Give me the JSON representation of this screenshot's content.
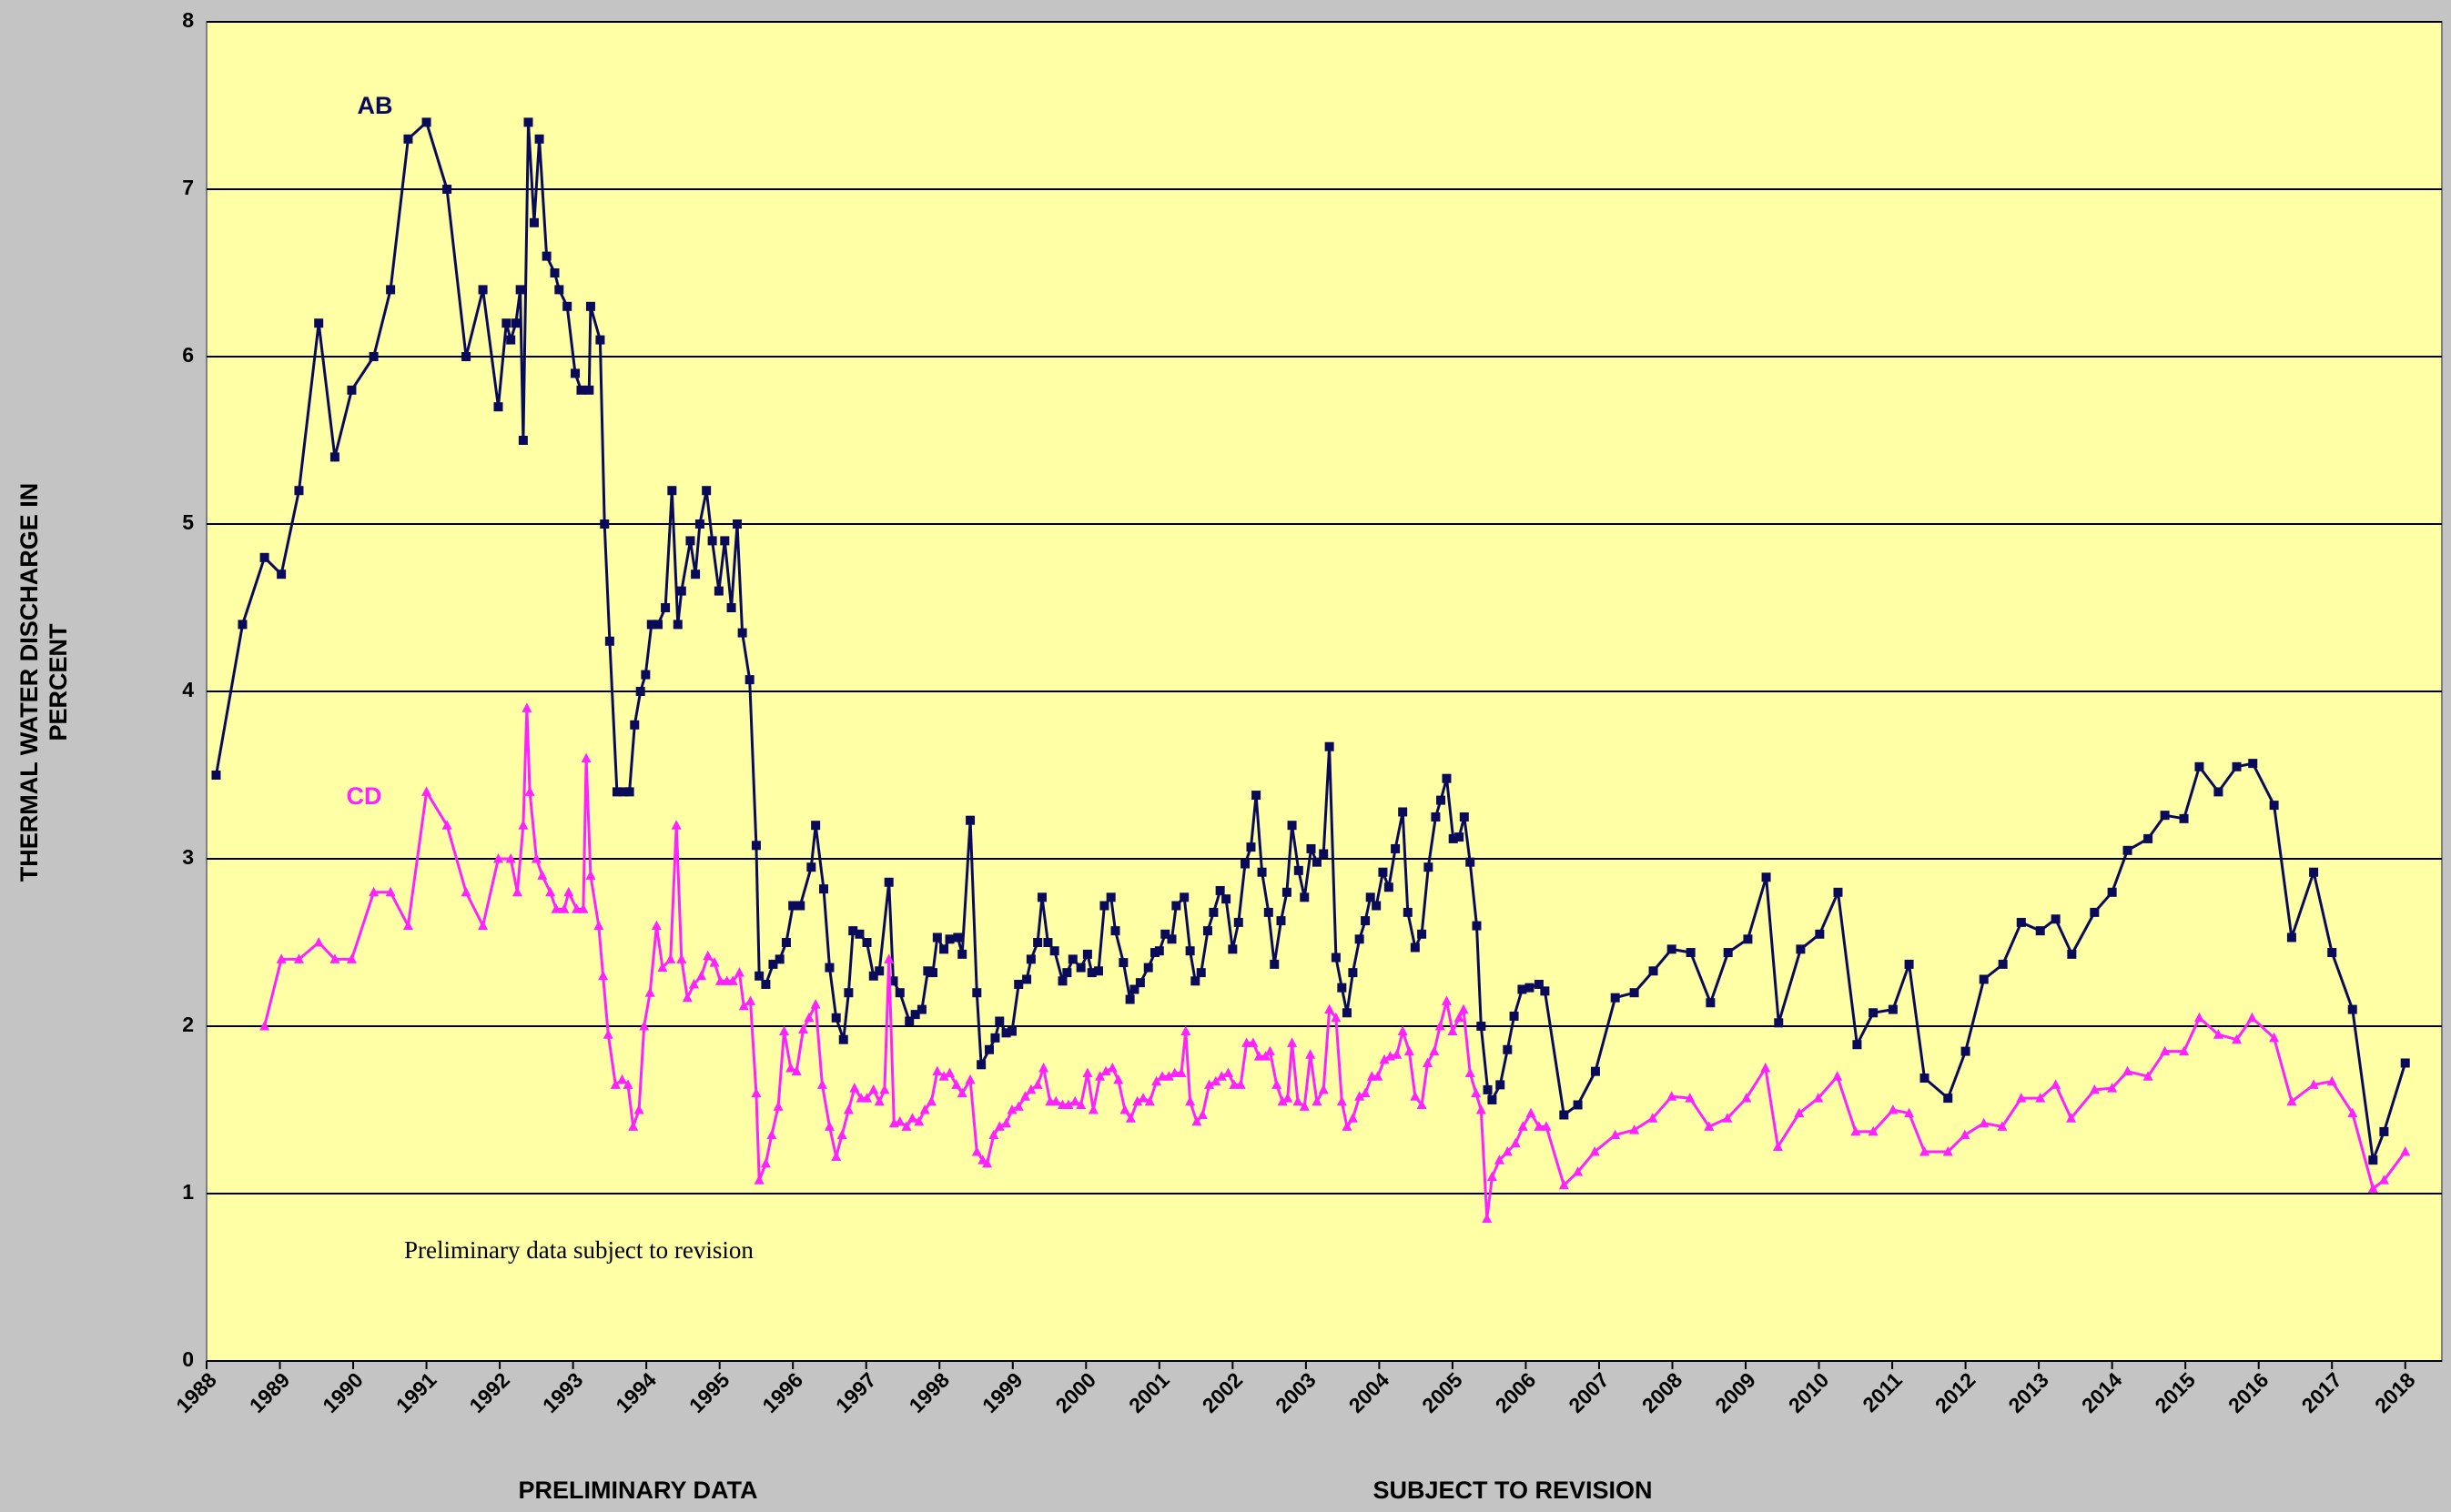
{
  "chart_data": {
    "type": "line",
    "y_label": [
      "THERMAL WATER DISCHARGE IN",
      "PERCENT"
    ],
    "annotations": [
      "Preliminary data subject to revision",
      "PRELIMINARY DATA",
      "SUBJECT TO REVISION"
    ],
    "xlim": [
      1988,
      2018.5
    ],
    "ylim": [
      0,
      8
    ],
    "xticks": [
      1988,
      1989,
      1990,
      1991,
      1992,
      1993,
      1994,
      1995,
      1996,
      1997,
      1998,
      1999,
      2000,
      2001,
      2002,
      2003,
      2004,
      2005,
      2006,
      2007,
      2008,
      2009,
      2010,
      2011,
      2012,
      2013,
      2014,
      2015,
      2016,
      2017,
      2018
    ],
    "yticks": [
      0,
      1,
      2,
      3,
      4,
      5,
      6,
      7,
      8
    ],
    "grid": true,
    "series": [
      {
        "name": "AB",
        "color": "#0a0a5a",
        "marker": "square",
        "x": [
          1988.13,
          1988.49,
          1988.79,
          1989.02,
          1989.26,
          1989.53,
          1989.75,
          1989.98,
          1990.28,
          1990.51,
          1990.75,
          1991.0,
          1991.28,
          1991.54,
          1991.77,
          1991.98,
          1992.09,
          1992.15,
          1992.22,
          1992.28,
          1992.32,
          1992.39,
          1992.47,
          1992.54,
          1992.64,
          1992.75,
          1992.81,
          1992.92,
          1993.03,
          1993.11,
          1993.22,
          1993.24,
          1993.37,
          1993.43,
          1993.5,
          1993.6,
          1993.69,
          1993.77,
          1993.84,
          1993.92,
          1993.99,
          1994.07,
          1994.16,
          1994.26,
          1994.35,
          1994.43,
          1994.48,
          1994.6,
          1994.67,
          1994.73,
          1994.82,
          1994.9,
          1994.99,
          1995.07,
          1995.16,
          1995.24,
          1995.31,
          1995.41,
          1995.5,
          1995.54,
          1995.63,
          1995.73,
          1995.82,
          1995.91,
          1996.0,
          1996.1,
          1996.25,
          1996.31,
          1996.42,
          1996.5,
          1996.59,
          1996.69,
          1996.76,
          1996.82,
          1996.91,
          1997.01,
          1997.1,
          1997.18,
          1997.31,
          1997.37,
          1997.46,
          1997.59,
          1997.67,
          1997.76,
          1997.84,
          1997.91,
          1997.97,
          1998.06,
          1998.14,
          1998.25,
          1998.31,
          1998.42,
          1998.51,
          1998.57,
          1998.68,
          1998.76,
          1998.82,
          1998.91,
          1998.99,
          1999.08,
          1999.19,
          1999.25,
          1999.34,
          1999.4,
          1999.48,
          1999.57,
          1999.68,
          1999.74,
          1999.82,
          1999.93,
          2000.02,
          2000.08,
          2000.17,
          2000.25,
          2000.34,
          2000.4,
          2000.51,
          2000.6,
          2000.66,
          2000.74,
          2000.85,
          2000.94,
          2001.0,
          2001.08,
          2001.17,
          2001.23,
          2001.34,
          2001.42,
          2001.49,
          2001.57,
          2001.66,
          2001.74,
          2001.83,
          2001.91,
          2002.0,
          2002.08,
          2002.17,
          2002.25,
          2002.32,
          2002.4,
          2002.49,
          2002.57,
          2002.66,
          2002.74,
          2002.81,
          2002.9,
          2002.98,
          2003.07,
          2003.15,
          2003.24,
          2003.32,
          2003.41,
          2003.49,
          2003.56,
          2003.64,
          2003.73,
          2003.81,
          2003.88,
          2003.96,
          2004.05,
          2004.13,
          2004.22,
          2004.32,
          2004.39,
          2004.49,
          2004.58,
          2004.67,
          2004.77,
          2004.84,
          2004.92,
          2005.01,
          2005.09,
          2005.16,
          2005.24,
          2005.33,
          2005.39,
          2005.48,
          2005.54,
          2005.65,
          2005.75,
          2005.84,
          2005.95,
          2006.05,
          2006.18,
          2006.26,
          2006.52,
          2006.71,
          2006.95,
          2007.22,
          2007.48,
          2007.74,
          2007.99,
          2008.25,
          2008.52,
          2008.76,
          2009.03,
          2009.28,
          2009.45,
          2009.75,
          2010.01,
          2010.26,
          2010.52,
          2010.74,
          2011.01,
          2011.23,
          2011.44,
          2011.76,
          2012.0,
          2012.25,
          2012.51,
          2012.76,
          2013.02,
          2013.23,
          2013.45,
          2013.76,
          2014.0,
          2014.21,
          2014.49,
          2014.72,
          2014.98,
          2015.19,
          2015.45,
          2015.7,
          2015.92,
          2016.21,
          2016.45,
          2016.75,
          2017.0,
          2017.28,
          2017.56,
          2017.71,
          2018.0
        ],
        "values": [
          3.5,
          4.4,
          4.8,
          4.7,
          5.2,
          6.2,
          5.4,
          5.8,
          6.0,
          6.4,
          7.3,
          7.4,
          7.0,
          6.0,
          6.4,
          5.7,
          6.2,
          6.1,
          6.2,
          6.4,
          5.5,
          7.4,
          6.8,
          7.3,
          6.6,
          6.5,
          6.4,
          6.3,
          5.9,
          5.8,
          5.8,
          6.3,
          6.1,
          5.0,
          4.3,
          3.4,
          3.4,
          3.4,
          3.8,
          4.0,
          4.1,
          4.4,
          4.4,
          4.5,
          5.2,
          4.4,
          4.6,
          4.9,
          4.7,
          5.0,
          5.2,
          4.9,
          4.6,
          4.9,
          4.5,
          5.0,
          4.35,
          4.07,
          3.08,
          2.3,
          2.25,
          2.37,
          2.4,
          2.5,
          2.72,
          2.72,
          2.95,
          3.2,
          2.82,
          2.35,
          2.05,
          1.92,
          2.2,
          2.57,
          2.55,
          2.5,
          2.3,
          2.33,
          2.86,
          2.27,
          2.2,
          2.03,
          2.07,
          2.1,
          2.33,
          2.32,
          2.53,
          2.46,
          2.52,
          2.53,
          2.43,
          3.23,
          2.2,
          1.77,
          1.86,
          1.93,
          2.03,
          1.96,
          1.97,
          2.25,
          2.28,
          2.4,
          2.5,
          2.77,
          2.5,
          2.45,
          2.27,
          2.32,
          2.4,
          2.35,
          2.43,
          2.32,
          2.33,
          2.72,
          2.77,
          2.57,
          2.38,
          2.16,
          2.22,
          2.26,
          2.35,
          2.44,
          2.45,
          2.55,
          2.52,
          2.72,
          2.77,
          2.45,
          2.27,
          2.32,
          2.57,
          2.68,
          2.81,
          2.76,
          2.46,
          2.62,
          2.97,
          3.07,
          3.38,
          2.92,
          2.68,
          2.37,
          2.63,
          2.8,
          3.2,
          2.93,
          2.77,
          3.06,
          2.98,
          3.03,
          3.67,
          2.41,
          2.23,
          2.08,
          2.32,
          2.52,
          2.63,
          2.77,
          2.72,
          2.92,
          2.83,
          3.06,
          3.28,
          2.68,
          2.47,
          2.55,
          2.95,
          3.25,
          3.35,
          3.48,
          3.12,
          3.13,
          3.25,
          2.98,
          2.6,
          2.0,
          1.62,
          1.56,
          1.65,
          1.86,
          2.06,
          2.22,
          2.23,
          2.25,
          2.21,
          1.47,
          1.53,
          1.73,
          2.17,
          2.2,
          2.33,
          2.46,
          2.44,
          2.14,
          2.44,
          2.52,
          2.89,
          2.02,
          2.46,
          2.55,
          2.8,
          1.89,
          2.08,
          2.1,
          2.37,
          1.69,
          1.57,
          1.85,
          2.28,
          2.37,
          2.62,
          2.57,
          2.64,
          2.43,
          2.68,
          2.8,
          3.05,
          3.12,
          3.26,
          3.24,
          3.55,
          3.4,
          3.55,
          3.57,
          3.32,
          2.53,
          2.92,
          2.44,
          2.1,
          1.2,
          1.37,
          1.78
        ]
      },
      {
        "name": "CD",
        "color": "#ff22ff",
        "marker": "triangle",
        "x": [
          1988.79,
          1989.02,
          1989.26,
          1989.53,
          1989.75,
          1989.98,
          1990.28,
          1990.51,
          1990.75,
          1991.0,
          1991.28,
          1991.54,
          1991.77,
          1991.98,
          1992.15,
          1992.24,
          1992.32,
          1992.37,
          1992.41,
          1992.5,
          1992.58,
          1992.69,
          1992.77,
          1992.88,
          1992.94,
          1993.05,
          1993.14,
          1993.18,
          1993.24,
          1993.35,
          1993.41,
          1993.48,
          1993.58,
          1993.67,
          1993.75,
          1993.82,
          1993.9,
          1993.97,
          1994.05,
          1994.14,
          1994.22,
          1994.33,
          1994.41,
          1994.48,
          1994.56,
          1994.65,
          1994.75,
          1994.84,
          1994.93,
          1995.01,
          1995.1,
          1995.18,
          1995.27,
          1995.33,
          1995.42,
          1995.5,
          1995.54,
          1995.63,
          1995.71,
          1995.8,
          1995.88,
          1995.97,
          1996.05,
          1996.14,
          1996.22,
          1996.31,
          1996.4,
          1996.5,
          1996.59,
          1996.67,
          1996.76,
          1996.84,
          1996.93,
          1997.01,
          1997.1,
          1997.18,
          1997.25,
          1997.31,
          1997.38,
          1997.46,
          1997.55,
          1997.63,
          1997.72,
          1997.8,
          1997.89,
          1997.97,
          1998.06,
          1998.14,
          1998.23,
          1998.31,
          1998.42,
          1998.51,
          1998.59,
          1998.65,
          1998.74,
          1998.82,
          1998.91,
          1998.99,
          1999.08,
          1999.17,
          1999.25,
          1999.34,
          1999.42,
          1999.51,
          1999.59,
          1999.68,
          1999.76,
          1999.85,
          1999.93,
          2000.02,
          2000.1,
          2000.19,
          2000.27,
          2000.36,
          2000.44,
          2000.53,
          2000.61,
          2000.7,
          2000.78,
          2000.87,
          2000.96,
          2001.04,
          2001.13,
          2001.21,
          2001.3,
          2001.36,
          2001.42,
          2001.51,
          2001.59,
          2001.68,
          2001.77,
          2001.85,
          2001.94,
          2002.02,
          2002.11,
          2002.19,
          2002.28,
          2002.36,
          2002.45,
          2002.51,
          2002.6,
          2002.68,
          2002.75,
          2002.81,
          2002.89,
          2002.98,
          2003.06,
          2003.15,
          2003.24,
          2003.32,
          2003.41,
          2003.49,
          2003.56,
          2003.64,
          2003.73,
          2003.81,
          2003.9,
          2003.98,
          2004.07,
          2004.15,
          2004.24,
          2004.32,
          2004.41,
          2004.49,
          2004.58,
          2004.66,
          2004.75,
          2004.83,
          2004.92,
          2005.0,
          2005.09,
          2005.15,
          2005.24,
          2005.32,
          2005.39,
          2005.47,
          2005.54,
          2005.64,
          2005.75,
          2005.86,
          2005.96,
          2006.07,
          2006.18,
          2006.28,
          2006.52,
          2006.71,
          2006.94,
          2007.22,
          2007.48,
          2007.73,
          2007.99,
          2008.24,
          2008.5,
          2008.75,
          2009.01,
          2009.27,
          2009.44,
          2009.73,
          2009.99,
          2010.25,
          2010.5,
          2010.74,
          2011.01,
          2011.23,
          2011.44,
          2011.76,
          2011.99,
          2012.25,
          2012.5,
          2012.76,
          2013.02,
          2013.23,
          2013.44,
          2013.76,
          2014.0,
          2014.21,
          2014.49,
          2014.72,
          2014.98,
          2015.19,
          2015.45,
          2015.7,
          2015.91,
          2016.21,
          2016.45,
          2016.75,
          2017.0,
          2017.28,
          2017.56,
          2017.71,
          2018.0
        ],
        "values": [
          2.0,
          2.4,
          2.4,
          2.5,
          2.4,
          2.4,
          2.8,
          2.8,
          2.6,
          3.4,
          3.2,
          2.8,
          2.6,
          3.0,
          3.0,
          2.8,
          3.2,
          3.9,
          3.4,
          3.0,
          2.9,
          2.8,
          2.7,
          2.7,
          2.8,
          2.7,
          2.7,
          3.6,
          2.9,
          2.6,
          2.3,
          1.95,
          1.65,
          1.68,
          1.65,
          1.4,
          1.5,
          2.0,
          2.2,
          2.6,
          2.35,
          2.4,
          3.2,
          2.4,
          2.17,
          2.25,
          2.3,
          2.42,
          2.38,
          2.27,
          2.27,
          2.27,
          2.32,
          2.12,
          2.15,
          1.6,
          1.08,
          1.18,
          1.35,
          1.52,
          1.97,
          1.75,
          1.73,
          1.98,
          2.05,
          2.13,
          1.65,
          1.4,
          1.22,
          1.35,
          1.5,
          1.63,
          1.57,
          1.57,
          1.62,
          1.55,
          1.62,
          2.4,
          1.42,
          1.43,
          1.4,
          1.45,
          1.43,
          1.5,
          1.55,
          1.73,
          1.7,
          1.72,
          1.65,
          1.6,
          1.68,
          1.25,
          1.2,
          1.18,
          1.35,
          1.4,
          1.42,
          1.5,
          1.52,
          1.58,
          1.62,
          1.65,
          1.75,
          1.55,
          1.55,
          1.53,
          1.53,
          1.55,
          1.53,
          1.72,
          1.5,
          1.7,
          1.73,
          1.75,
          1.68,
          1.5,
          1.45,
          1.55,
          1.57,
          1.55,
          1.67,
          1.7,
          1.7,
          1.72,
          1.72,
          1.97,
          1.55,
          1.43,
          1.47,
          1.65,
          1.67,
          1.7,
          1.72,
          1.65,
          1.65,
          1.9,
          1.9,
          1.82,
          1.82,
          1.85,
          1.65,
          1.55,
          1.57,
          1.9,
          1.55,
          1.52,
          1.83,
          1.55,
          1.62,
          2.1,
          2.05,
          1.55,
          1.4,
          1.45,
          1.58,
          1.6,
          1.7,
          1.7,
          1.8,
          1.82,
          1.83,
          1.97,
          1.85,
          1.58,
          1.53,
          1.78,
          1.85,
          2.0,
          2.15,
          1.97,
          2.05,
          2.1,
          1.72,
          1.6,
          1.5,
          0.85,
          1.1,
          1.2,
          1.25,
          1.3,
          1.4,
          1.48,
          1.4,
          1.4,
          1.05,
          1.13,
          1.25,
          1.35,
          1.38,
          1.45,
          1.58,
          1.57,
          1.4,
          1.45,
          1.57,
          1.75,
          1.28,
          1.48,
          1.57,
          1.7,
          1.37,
          1.37,
          1.5,
          1.48,
          1.25,
          1.25,
          1.35,
          1.42,
          1.4,
          1.57,
          1.57,
          1.65,
          1.45,
          1.62,
          1.63,
          1.73,
          1.7,
          1.85,
          1.85,
          2.05,
          1.95,
          1.92,
          2.05,
          1.93,
          1.55,
          1.65,
          1.67,
          1.48,
          1.03,
          1.08,
          1.25
        ]
      }
    ]
  }
}
